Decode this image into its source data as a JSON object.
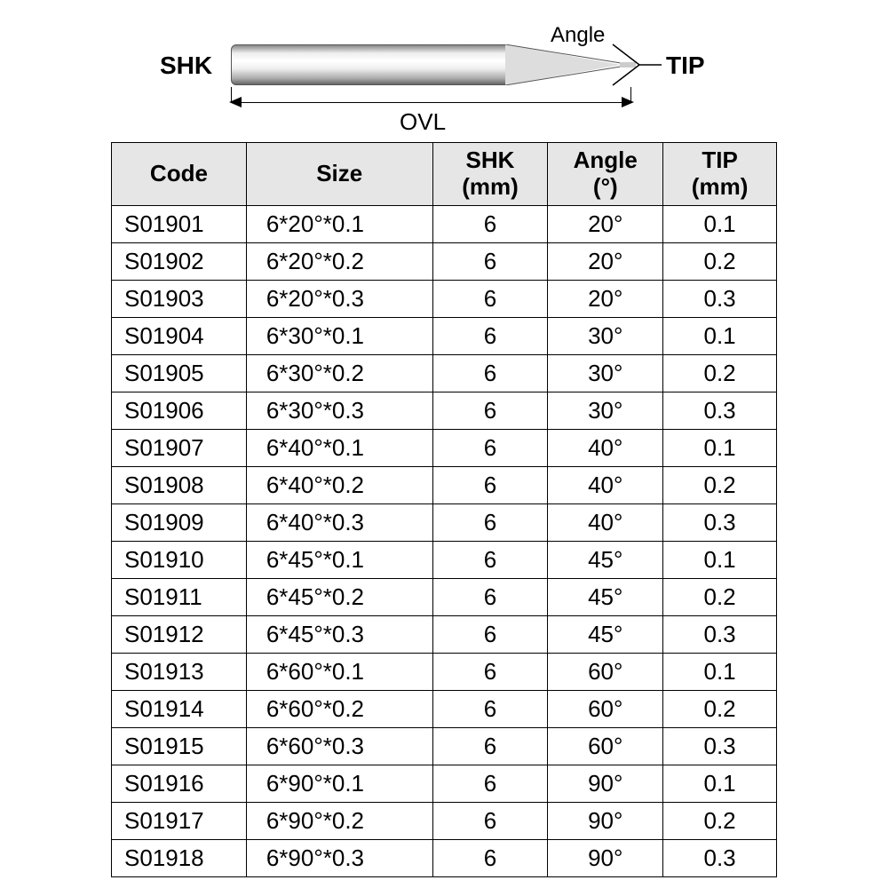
{
  "diagram": {
    "shk_label": "SHK",
    "angle_label": "Angle",
    "tip_label": "TIP",
    "ovl_label": "OVL"
  },
  "table": {
    "columns": [
      {
        "line1": "Code",
        "line2": ""
      },
      {
        "line1": "Size",
        "line2": ""
      },
      {
        "line1": "SHK",
        "line2": "(mm)"
      },
      {
        "line1": "Angle",
        "line2": "(°)"
      },
      {
        "line1": "TIP",
        "line2": "(mm)"
      }
    ],
    "rows": [
      [
        "S01901",
        "6*20°*0.1",
        "6",
        "20°",
        "0.1"
      ],
      [
        "S01902",
        "6*20°*0.2",
        "6",
        "20°",
        "0.2"
      ],
      [
        "S01903",
        "6*20°*0.3",
        "6",
        "20°",
        "0.3"
      ],
      [
        "S01904",
        "6*30°*0.1",
        "6",
        "30°",
        "0.1"
      ],
      [
        "S01905",
        "6*30°*0.2",
        "6",
        "30°",
        "0.2"
      ],
      [
        "S01906",
        "6*30°*0.3",
        "6",
        "30°",
        "0.3"
      ],
      [
        "S01907",
        "6*40°*0.1",
        "6",
        "40°",
        "0.1"
      ],
      [
        "S01908",
        "6*40°*0.2",
        "6",
        "40°",
        "0.2"
      ],
      [
        "S01909",
        "6*40°*0.3",
        "6",
        "40°",
        "0.3"
      ],
      [
        "S01910",
        "6*45°*0.1",
        "6",
        "45°",
        "0.1"
      ],
      [
        "S01911",
        "6*45°*0.2",
        "6",
        "45°",
        "0.2"
      ],
      [
        "S01912",
        "6*45°*0.3",
        "6",
        "45°",
        "0.3"
      ],
      [
        "S01913",
        "6*60°*0.1",
        "6",
        "60°",
        "0.1"
      ],
      [
        "S01914",
        "6*60°*0.2",
        "6",
        "60°",
        "0.2"
      ],
      [
        "S01915",
        "6*60°*0.3",
        "6",
        "60°",
        "0.3"
      ],
      [
        "S01916",
        "6*90°*0.1",
        "6",
        "90°",
        "0.1"
      ],
      [
        "S01917",
        "6*90°*0.2",
        "6",
        "90°",
        "0.2"
      ],
      [
        "S01918",
        "6*90°*0.3",
        "6",
        "90°",
        "0.3"
      ]
    ],
    "header_bg": "#e6e6e6",
    "border_color": "#000000",
    "font_size": 26
  }
}
